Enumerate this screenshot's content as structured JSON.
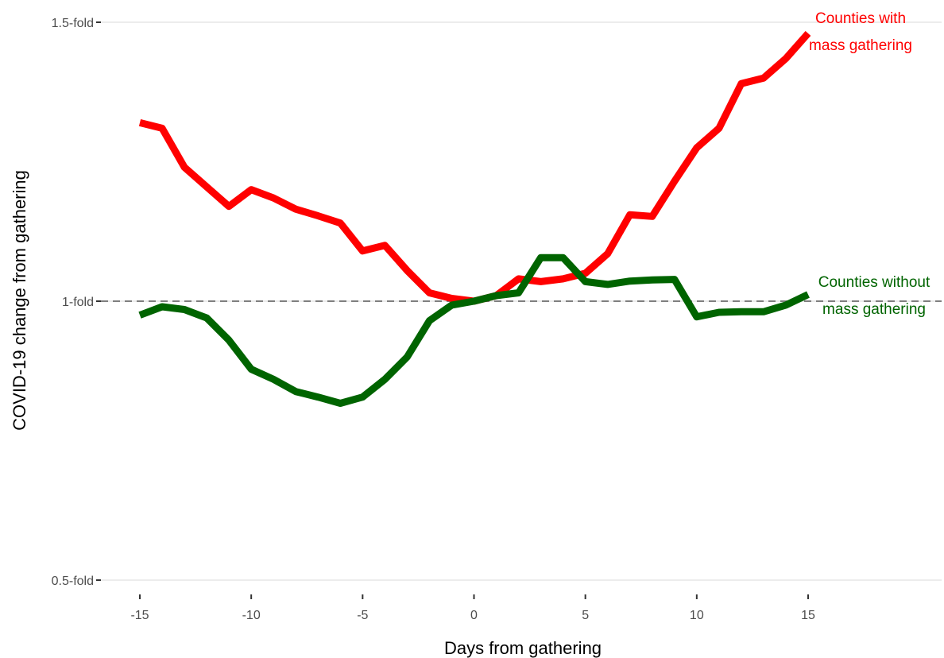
{
  "chart_data": {
    "type": "line",
    "xlabel": "Days from gathering",
    "ylabel": "COVID-19 change from gathering",
    "xlim": [
      -15,
      15
    ],
    "ylim": [
      0.5,
      1.5
    ],
    "x_ticks": [
      -15,
      -10,
      -5,
      0,
      5,
      10,
      15
    ],
    "y_ticks": [
      {
        "value": 0.5,
        "label": "0.5-fold"
      },
      {
        "value": 1.0,
        "label": "1-fold"
      },
      {
        "value": 1.5,
        "label": "1.5-fold"
      }
    ],
    "reference_line": {
      "y": 1.0,
      "style": "dashed",
      "color": "#7f7f7f"
    },
    "grid": {
      "horizontal": true,
      "vertical": false
    },
    "x": [
      -15,
      -14,
      -13,
      -12,
      -11,
      -10,
      -9,
      -8,
      -7,
      -6,
      -5,
      -4,
      -3,
      -2,
      -1,
      0,
      1,
      2,
      3,
      4,
      5,
      6,
      7,
      8,
      9,
      10,
      11,
      12,
      13,
      14,
      15
    ],
    "series": [
      {
        "label_lines": [
          "Counties with",
          "mass gathering"
        ],
        "color": "#ff0000",
        "values": [
          1.32,
          1.31,
          1.24,
          1.205,
          1.17,
          1.2,
          1.185,
          1.165,
          1.153,
          1.14,
          1.09,
          1.1,
          1.055,
          1.015,
          1.005,
          1.0,
          1.01,
          1.04,
          1.035,
          1.04,
          1.05,
          1.085,
          1.155,
          1.152,
          1.215,
          1.275,
          1.31,
          1.39,
          1.4,
          1.435,
          1.48
        ]
      },
      {
        "label_lines": [
          "Counties without",
          "mass gathering"
        ],
        "color": "#006400",
        "values": [
          0.975,
          0.99,
          0.985,
          0.97,
          0.93,
          0.878,
          0.86,
          0.838,
          0.828,
          0.817,
          0.828,
          0.86,
          0.9,
          0.965,
          0.993,
          1.0,
          1.01,
          1.015,
          1.078,
          1.078,
          1.035,
          1.03,
          1.036,
          1.038,
          1.039,
          0.972,
          0.98,
          0.981,
          0.981,
          0.993,
          1.012
        ]
      }
    ]
  }
}
